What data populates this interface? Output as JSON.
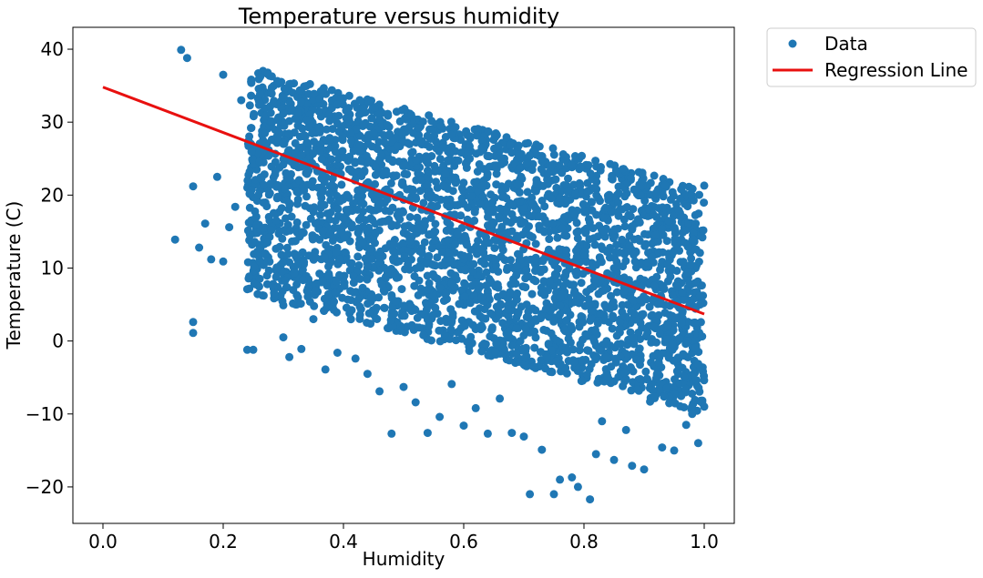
{
  "chart_data": {
    "type": "scatter",
    "title": "Temperature versus humidity",
    "xlabel": "Humidity",
    "ylabel": "Temperature (C)",
    "xlim": [
      -0.05,
      1.05
    ],
    "ylim": [
      -25,
      43
    ],
    "x_ticks": [
      0.0,
      0.2,
      0.4,
      0.6,
      0.8,
      1.0
    ],
    "x_tick_labels": [
      "0.0",
      "0.2",
      "0.4",
      "0.6",
      "0.8",
      "1.0"
    ],
    "y_ticks": [
      -20,
      -10,
      0,
      10,
      20,
      30,
      40
    ],
    "y_tick_labels": [
      "−20",
      "−10",
      "0",
      "10",
      "20",
      "30",
      "40"
    ],
    "grid": false,
    "legend_position": "outside-top-right",
    "series": [
      {
        "name": "Data",
        "kind": "scatter",
        "color": "#1f77b4",
        "note": "dense cloud of observations; representative points shown",
        "points": [
          [
            0.12,
            13.9
          ],
          [
            0.13,
            39.9
          ],
          [
            0.14,
            38.8
          ],
          [
            0.15,
            21.2
          ],
          [
            0.15,
            2.6
          ],
          [
            0.15,
            1.1
          ],
          [
            0.16,
            12.8
          ],
          [
            0.17,
            16.1
          ],
          [
            0.18,
            11.2
          ],
          [
            0.19,
            22.5
          ],
          [
            0.2,
            10.9
          ],
          [
            0.2,
            36.5
          ],
          [
            0.21,
            15.6
          ],
          [
            0.22,
            18.4
          ],
          [
            0.23,
            33.0
          ],
          [
            0.24,
            7.1
          ],
          [
            0.24,
            -1.2
          ],
          [
            0.25,
            -1.2
          ],
          [
            0.26,
            24.6
          ],
          [
            0.27,
            12.0
          ],
          [
            0.28,
            15.2
          ],
          [
            0.29,
            30.3
          ],
          [
            0.3,
            4.9
          ],
          [
            0.3,
            0.5
          ],
          [
            0.31,
            -2.2
          ],
          [
            0.32,
            27.1
          ],
          [
            0.33,
            -1.1
          ],
          [
            0.34,
            21.4
          ],
          [
            0.35,
            3.0
          ],
          [
            0.36,
            33.2
          ],
          [
            0.37,
            -3.9
          ],
          [
            0.38,
            24.9
          ],
          [
            0.39,
            -1.6
          ],
          [
            0.4,
            16.8
          ],
          [
            0.41,
            30.1
          ],
          [
            0.42,
            -2.4
          ],
          [
            0.43,
            22.6
          ],
          [
            0.44,
            -4.5
          ],
          [
            0.45,
            28.5
          ],
          [
            0.46,
            -6.9
          ],
          [
            0.47,
            12.7
          ],
          [
            0.48,
            -12.7
          ],
          [
            0.49,
            26.7
          ],
          [
            0.5,
            -6.3
          ],
          [
            0.51,
            19.3
          ],
          [
            0.52,
            -8.4
          ],
          [
            0.53,
            27.4
          ],
          [
            0.54,
            -12.6
          ],
          [
            0.55,
            10.4
          ],
          [
            0.56,
            -10.4
          ],
          [
            0.57,
            22.9
          ],
          [
            0.58,
            -5.9
          ],
          [
            0.59,
            14.7
          ],
          [
            0.6,
            -11.6
          ],
          [
            0.61,
            25.0
          ],
          [
            0.62,
            -9.2
          ],
          [
            0.63,
            6.0
          ],
          [
            0.64,
            -12.7
          ],
          [
            0.65,
            16.2
          ],
          [
            0.66,
            -7.9
          ],
          [
            0.67,
            20.9
          ],
          [
            0.68,
            -12.6
          ],
          [
            0.69,
            3.7
          ],
          [
            0.7,
            -13.1
          ],
          [
            0.71,
            -21.0
          ],
          [
            0.72,
            13.3
          ],
          [
            0.73,
            -14.9
          ],
          [
            0.74,
            21.5
          ],
          [
            0.75,
            -21.0
          ],
          [
            0.76,
            -19.0
          ],
          [
            0.77,
            9.4
          ],
          [
            0.78,
            -18.7
          ],
          [
            0.79,
            -20.0
          ],
          [
            0.8,
            17.9
          ],
          [
            0.81,
            -21.7
          ],
          [
            0.82,
            -15.5
          ],
          [
            0.83,
            -11.0
          ],
          [
            0.84,
            19.9
          ],
          [
            0.85,
            -16.3
          ],
          [
            0.86,
            2.6
          ],
          [
            0.87,
            -12.2
          ],
          [
            0.88,
            -17.1
          ],
          [
            0.89,
            14.0
          ],
          [
            0.9,
            -17.6
          ],
          [
            0.91,
            -8.3
          ],
          [
            0.92,
            20.3
          ],
          [
            0.93,
            -14.6
          ],
          [
            0.94,
            8.2
          ],
          [
            0.95,
            -15.0
          ],
          [
            0.96,
            19.5
          ],
          [
            0.97,
            -11.5
          ],
          [
            0.98,
            -10.0
          ],
          [
            0.99,
            -14.0
          ],
          [
            1.0,
            21.3
          ],
          [
            1.0,
            -9.0
          ]
        ]
      },
      {
        "name": "Regression Line",
        "kind": "line",
        "color": "#e8100f",
        "x": [
          0.0,
          1.0
        ],
        "y": [
          34.8,
          3.7
        ]
      }
    ]
  }
}
